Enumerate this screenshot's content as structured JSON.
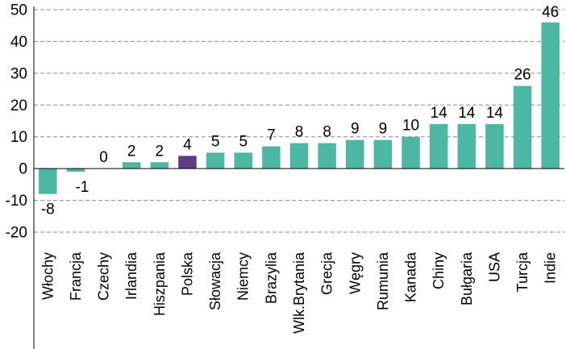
{
  "chart_data": {
    "type": "bar",
    "categories": [
      "Włochy",
      "Francja",
      "Czechy",
      "Irlandia",
      "Hiszpania",
      "Polska",
      "Słowacja",
      "Niemcy",
      "Brazylia",
      "Wlk.Brytania",
      "Grecja",
      "Węgry",
      "Rumunia",
      "Kanada",
      "Chiny",
      "Bułgaria",
      "USA",
      "Turcja",
      "Indie"
    ],
    "values": [
      -8,
      -1,
      0,
      2,
      2,
      4,
      5,
      5,
      7,
      8,
      8,
      9,
      9,
      10,
      14,
      14,
      14,
      26,
      46
    ],
    "data_labels": [
      "-8",
      "-1",
      "0",
      "2",
      "2",
      "4",
      "5",
      "5",
      "7",
      "8",
      "8",
      "9",
      "9",
      "10",
      "14",
      "14",
      "14",
      "26",
      "46"
    ],
    "y_ticks": [
      "50",
      "40",
      "30",
      "20",
      "10",
      "0",
      "-10",
      "-20"
    ],
    "ylim": [
      -20,
      50
    ],
    "grid": true,
    "grid_style": "dashed",
    "bar_color": "#4cb8a4",
    "highlight_color": "#5e3a87",
    "highlight_category": "Polska",
    "title": "",
    "xlabel": "",
    "ylabel": ""
  }
}
